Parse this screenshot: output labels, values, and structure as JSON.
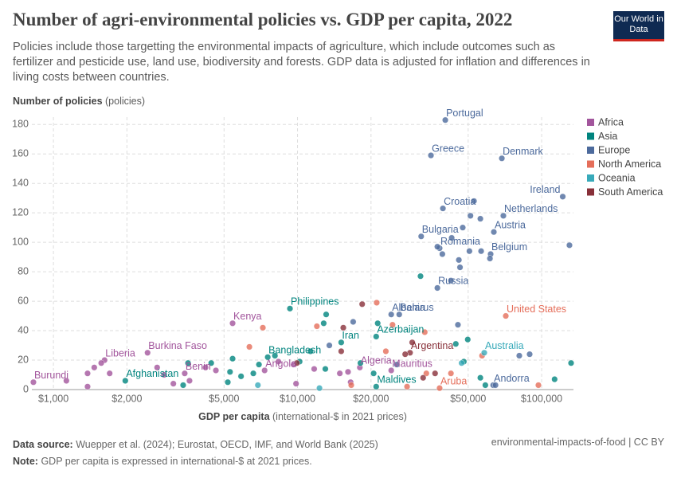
{
  "chart_data": {
    "type": "scatter",
    "title": "Number of agri-environmental policies vs. GDP per capita, 2022",
    "subtitle": "Policies include those targetting the environmental impacts of agriculture, which include outcomes such as fertilizer and pesticide use, land use, biodiversity and forests. GDP data is adjusted for inflation and differences in living costs between countries.",
    "y_label": "Number of policies",
    "y_unit": "(policies)",
    "x_label": "GDP per capita",
    "x_unit": "(international-$ in 2021 prices)",
    "logo": "Our World in Data",
    "source_label": "Data source:",
    "source": "Wuepper et al. (2024); Eurostat, OECD, IMF, and World Bank (2025)",
    "note_label": "Note:",
    "note": "GDP per capita is expressed in international-$ at 2021 prices.",
    "license": "environmental-impacts-of-food | CC BY",
    "x_log": true,
    "grid": true,
    "xlim": [
      816,
      135000
    ],
    "ylim": [
      0,
      185
    ],
    "xticks": [
      {
        "value": 1000,
        "label": "$1,000"
      },
      {
        "value": 2000,
        "label": "$2,000"
      },
      {
        "value": 5000,
        "label": "$5,000"
      },
      {
        "value": 10000,
        "label": "$10,000"
      },
      {
        "value": 20000,
        "label": "$20,000"
      },
      {
        "value": 50000,
        "label": "$50,000"
      },
      {
        "value": 100000,
        "label": "$100,000"
      }
    ],
    "yticks": [
      0,
      20,
      40,
      60,
      80,
      100,
      120,
      140,
      160,
      180
    ],
    "series": [
      {
        "name": "Africa",
        "color": "#a2559c",
        "x": [
          5420,
          1620,
          2430,
          828,
          3450,
          7330,
          18000,
          24200,
          1380,
          1470,
          1570,
          1700,
          1380,
          1130,
          2660,
          2840,
          3100,
          3610,
          4200,
          4630,
          8350,
          9640,
          9860,
          11700,
          14900,
          16100,
          16500
        ],
        "y": [
          45,
          20,
          25,
          5,
          11,
          13,
          15,
          13,
          11,
          15,
          18,
          11,
          2,
          6,
          15,
          10,
          4,
          6,
          15,
          13,
          19,
          17,
          4,
          14,
          11,
          12,
          5
        ],
        "labels": [
          "Kenya",
          "Liberia",
          "Burkina Faso",
          "Burundi",
          "Benin",
          "Angola",
          "Algeria",
          "Mauritius",
          null,
          null,
          null,
          null,
          null,
          null,
          null,
          null,
          null,
          null,
          null,
          null,
          null,
          null,
          null,
          null,
          null,
          null,
          null
        ]
      },
      {
        "name": "Asia",
        "color": "#00847e",
        "x": [
          9310,
          7550,
          1970,
          15100,
          21000,
          21000,
          12800,
          13100,
          31900,
          49800,
          44500,
          48000,
          56100,
          113000,
          132000,
          21300,
          5420,
          4430,
          5290,
          6590,
          10200,
          11300,
          13000,
          20500,
          58800,
          5180,
          3400,
          5870,
          6950,
          3560,
          8080,
          18100
        ],
        "y": [
          55,
          22,
          6,
          32,
          36,
          2,
          45,
          51,
          77,
          34,
          31,
          19,
          8,
          7,
          18,
          45,
          21,
          18,
          12,
          11,
          19,
          26,
          14,
          11,
          3,
          5,
          3,
          9,
          17,
          18,
          23,
          18
        ],
        "labels": [
          "Philippines",
          "Bangladesh",
          "Afghanistan",
          "Iran",
          "Azerbaijan",
          "Maldives",
          null,
          null,
          null,
          null,
          null,
          null,
          null,
          null,
          null,
          null,
          null,
          null,
          null,
          null,
          null,
          null,
          null,
          null,
          null,
          null,
          null,
          null,
          null,
          null,
          null,
          null
        ]
      },
      {
        "name": "Europe",
        "color": "#4c6a9c",
        "x": [
          40300,
          35200,
          68700,
          39400,
          122000,
          69700,
          63700,
          32100,
          38200,
          61800,
          37400,
          26100,
          24200,
          63300,
          52800,
          56100,
          51100,
          47500,
          42800,
          37400,
          39200,
          45800,
          46300,
          50600,
          61400,
          42500,
          56500,
          130000,
          16900,
          89300,
          81000,
          25500,
          64700,
          45400,
          13500
        ],
        "y": [
          183,
          159,
          157,
          123,
          131,
          118,
          107,
          104,
          96,
          92,
          69,
          51,
          51,
          3,
          128,
          116,
          118,
          110,
          103,
          97,
          92,
          88,
          83,
          94,
          89,
          74,
          94,
          98,
          46,
          24,
          23,
          17,
          3,
          44,
          30
        ],
        "labels": [
          "Portugal",
          "Greece",
          "Denmark",
          "Croatia",
          "Ireland",
          "Netherlands",
          "Austria",
          "Bulgaria",
          "Romania",
          "Belgium",
          "Russia",
          "Belarus",
          "Albania",
          "Andorra",
          null,
          null,
          null,
          null,
          null,
          null,
          null,
          null,
          null,
          null,
          null,
          null,
          null,
          null,
          null,
          null,
          null,
          null,
          null,
          null,
          null
        ]
      },
      {
        "name": "North America",
        "color": "#e56e5a",
        "x": [
          71300,
          38200,
          21100,
          7210,
          12000,
          6350,
          24500,
          33200,
          23000,
          57000,
          16600,
          97000,
          28100,
          33700,
          42500
        ],
        "y": [
          50,
          1,
          59,
          42,
          43,
          29,
          44,
          39,
          26,
          23,
          3,
          3,
          2,
          11,
          11
        ],
        "labels": [
          "United States",
          "Aruba",
          null,
          null,
          null,
          null,
          null,
          null,
          null,
          null,
          null,
          null,
          null,
          null,
          null
        ]
      },
      {
        "name": "Oceania",
        "color": "#38aaba",
        "x": [
          58200,
          47000,
          6880,
          12300
        ],
        "y": [
          25,
          18,
          3,
          1
        ],
        "labels": [
          "Australia",
          null,
          null,
          null
        ]
      },
      {
        "name": "South America",
        "color": "#883039",
        "x": [
          28900,
          18400,
          15400,
          15100,
          29500,
          27600,
          36600,
          9940,
          32700
        ],
        "y": [
          25,
          58,
          42,
          26,
          32,
          24,
          11,
          18,
          8
        ],
        "labels": [
          "Argentina",
          null,
          null,
          null,
          null,
          null,
          null,
          null,
          null
        ]
      }
    ]
  }
}
